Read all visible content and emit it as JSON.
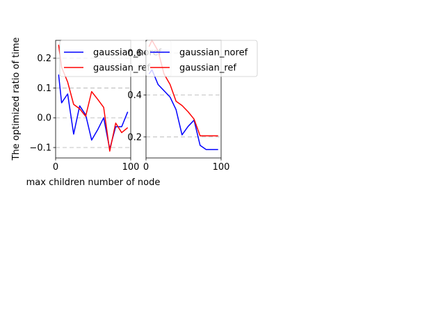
{
  "chart_data": [
    {
      "type": "line",
      "xlabel": "max children number of node",
      "ylabel": "The optimized ratio of time",
      "xlim": [
        0,
        100
      ],
      "ylim": [
        -0.135,
        0.26
      ],
      "xticks": [
        0,
        100
      ],
      "yticks": [
        -0.1,
        0.0,
        0.1,
        0.2
      ],
      "ytick_labels": [
        "−0.1",
        "0.0",
        "0.1",
        "0.2"
      ],
      "grid": "horizontal-dashed",
      "legend_position": "upper-right",
      "series": [
        {
          "name": "gaussian_noref",
          "color": "#0000ff",
          "x": [
            4,
            8,
            16,
            24,
            32,
            40,
            48,
            56,
            64,
            72,
            80,
            88,
            96
          ],
          "y": [
            0.145,
            0.05,
            0.08,
            -0.055,
            0.04,
            0.01,
            -0.075,
            -0.04,
            0.0,
            -0.105,
            -0.03,
            -0.03,
            0.02
          ]
        },
        {
          "name": "gaussian_ref",
          "color": "#ff0000",
          "x": [
            4,
            8,
            16,
            24,
            32,
            40,
            48,
            56,
            64,
            72,
            80,
            88,
            96
          ],
          "y": [
            0.245,
            0.17,
            0.12,
            0.045,
            0.03,
            0.005,
            0.088,
            0.062,
            0.035,
            -0.112,
            -0.018,
            -0.05,
            -0.033
          ]
        }
      ]
    },
    {
      "type": "line",
      "xlabel": "",
      "ylabel": "",
      "xlim": [
        0,
        100
      ],
      "ylim": [
        0.1,
        0.66
      ],
      "xticks": [
        0,
        100
      ],
      "yticks": [
        0.2,
        0.4,
        0.6
      ],
      "ytick_labels": [
        "0.2",
        "0.4",
        "0.6"
      ],
      "grid": "horizontal-dashed",
      "legend_position": "upper-right",
      "series": [
        {
          "name": "gaussian_noref",
          "color": "#0000ff",
          "x": [
            4,
            8,
            16,
            24,
            32,
            40,
            48,
            56,
            64,
            72,
            80,
            88,
            96
          ],
          "y": [
            0.5,
            0.52,
            0.45,
            0.42,
            0.39,
            0.33,
            0.21,
            0.25,
            0.28,
            0.16,
            0.14,
            0.14,
            0.14
          ]
        },
        {
          "name": "gaussian_ref",
          "color": "#ff0000",
          "x": [
            4,
            8,
            16,
            24,
            32,
            40,
            48,
            56,
            64,
            72,
            80,
            88,
            96
          ],
          "y": [
            0.63,
            0.66,
            0.61,
            0.5,
            0.45,
            0.37,
            0.35,
            0.32,
            0.285,
            0.205,
            0.205,
            0.205,
            0.205
          ]
        }
      ]
    }
  ]
}
